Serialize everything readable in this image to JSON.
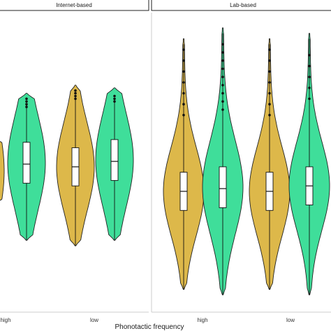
{
  "chart_data": {
    "type": "violin",
    "title": "",
    "xlabel": "Phonotactic frequency",
    "ylabel": "",
    "categories": [
      "high",
      "low"
    ],
    "colors": {
      "gold": "#DDB84A",
      "green": "#3FDE9A"
    },
    "ylim": [
      0,
      100
    ],
    "panels": [
      {
        "name": "Internet-based",
        "violins": [
          {
            "category": "high",
            "color": "gold",
            "median": 47,
            "q1": 40,
            "q3": 55,
            "whisker_low": 35,
            "whisker_high": 58,
            "min": 35,
            "max": 60,
            "outliers": [],
            "partial": true
          },
          {
            "category": "high",
            "color": "green",
            "median": 50,
            "q1": 43,
            "q3": 58,
            "whisker_low": 22,
            "whisker_high": 72,
            "min": 22,
            "max": 76,
            "outliers": [
              71,
              72,
              73,
              74
            ]
          },
          {
            "category": "low",
            "color": "gold",
            "median": 49,
            "q1": 42,
            "q3": 56,
            "whisker_low": 20,
            "whisker_high": 75,
            "min": 20,
            "max": 79,
            "outliers": [
              74,
              75,
              76,
              77
            ]
          },
          {
            "category": "low",
            "color": "green",
            "median": 51,
            "q1": 44,
            "q3": 59,
            "whisker_low": 22,
            "whisker_high": 74,
            "min": 22,
            "max": 78,
            "outliers": [
              73,
              74,
              75
            ]
          }
        ]
      },
      {
        "name": "Lab-based",
        "violins": [
          {
            "category": "high",
            "color": "gold",
            "median": 40,
            "q1": 33,
            "q3": 47,
            "whisker_low": 4,
            "whisker_high": 94,
            "min": 4,
            "max": 96,
            "outliers": [
              68,
              72,
              76,
              80,
              84,
              88,
              92
            ]
          },
          {
            "category": "high",
            "color": "green",
            "median": 41,
            "q1": 34,
            "q3": 49,
            "whisker_low": 2,
            "whisker_high": 98,
            "min": 2,
            "max": 100,
            "outliers": [
              70,
              73,
              76,
              79,
              82,
              85,
              88,
              91,
              94
            ]
          },
          {
            "category": "low",
            "color": "gold",
            "median": 40,
            "q1": 33,
            "q3": 47,
            "whisker_low": 4,
            "whisker_high": 94,
            "min": 4,
            "max": 96,
            "outliers": [
              68,
              72,
              76,
              80,
              84,
              88,
              92
            ]
          },
          {
            "category": "low",
            "color": "green",
            "median": 42,
            "q1": 35,
            "q3": 49,
            "whisker_low": 2,
            "whisker_high": 96,
            "min": 2,
            "max": 98,
            "outliers": [
              74,
              78,
              82,
              86,
              90
            ]
          }
        ]
      }
    ],
    "grid": false,
    "legend": "none"
  }
}
